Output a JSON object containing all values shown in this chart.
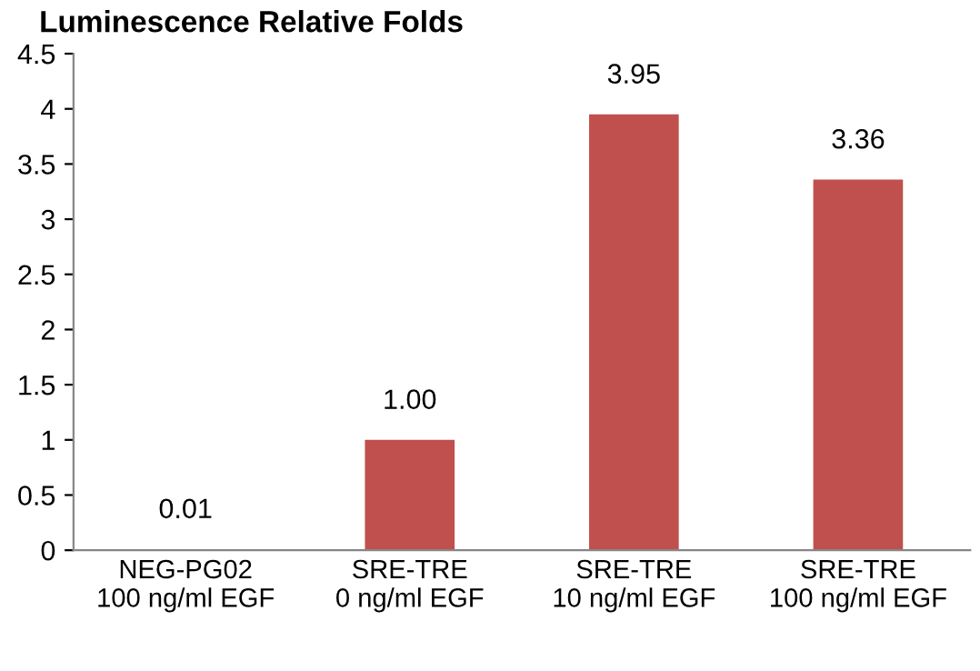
{
  "chart_data": {
    "type": "bar",
    "title": "Luminescence Relative Folds",
    "categories": [
      "NEG-PG02\n100 ng/ml EGF",
      "SRE-TRE\n0 ng/ml EGF",
      "SRE-TRE\n10 ng/ml EGF",
      "SRE-TRE\n100 ng/ml EGF"
    ],
    "values": [
      0.01,
      1.0,
      3.95,
      3.36
    ],
    "value_labels": [
      "0.01",
      "1.00",
      "3.95",
      "3.36"
    ],
    "color": "#c0504d",
    "ylim": [
      0,
      4.5
    ],
    "yticks": [
      0,
      0.5,
      1,
      1.5,
      2,
      2.5,
      3,
      3.5,
      4,
      4.5
    ],
    "grid": false
  }
}
